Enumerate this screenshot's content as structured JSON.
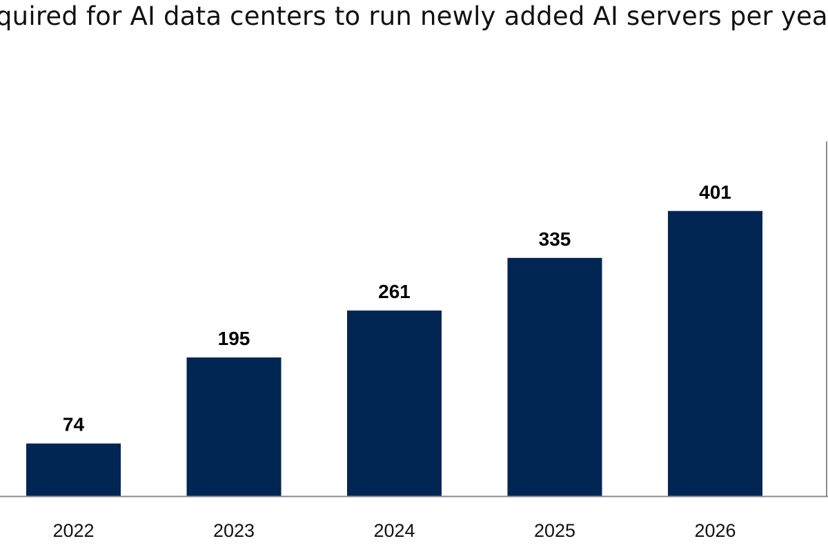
{
  "chart_data": {
    "type": "bar",
    "title": "quired for AI data centers to run newly added AI servers per yea",
    "categories": [
      "2022",
      "2023",
      "2024",
      "2025",
      "2026"
    ],
    "values": [
      74,
      195,
      261,
      335,
      401
    ],
    "data_labels": [
      "74",
      "195",
      "261",
      "335",
      "401"
    ],
    "ylim": [
      0,
      540
    ],
    "grid": false,
    "bar_color": "#012654",
    "axis_color": "#8a8a8a"
  }
}
